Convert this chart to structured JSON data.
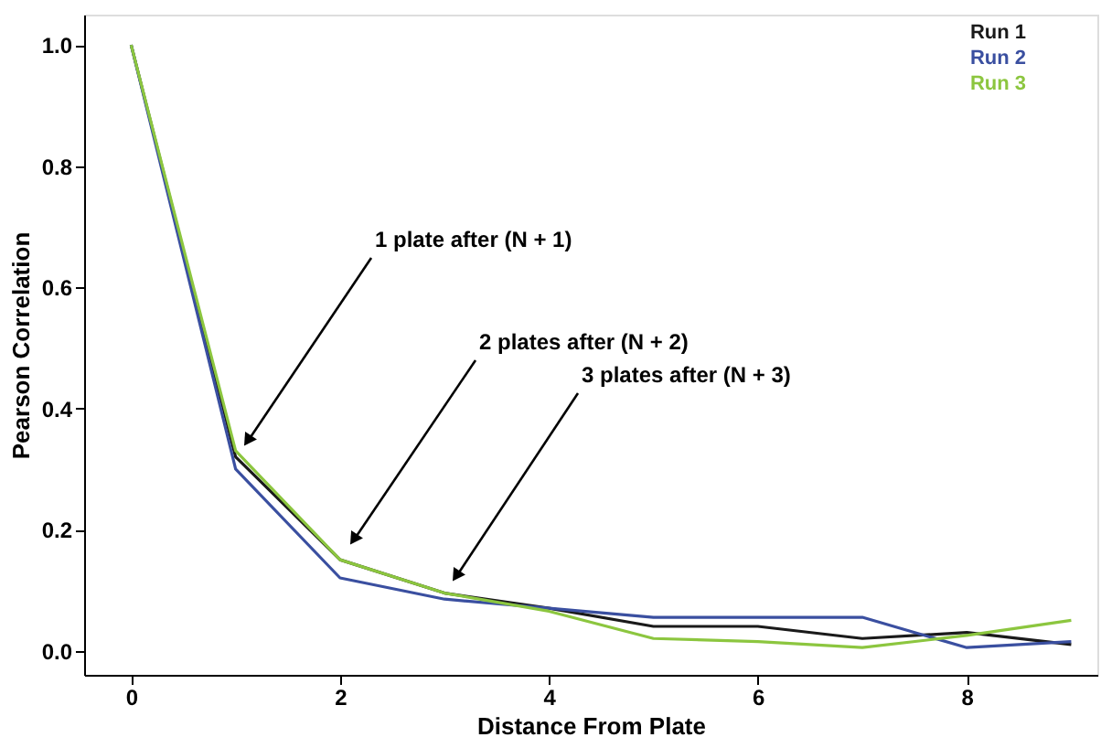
{
  "chart_data": {
    "type": "line",
    "xlabel": "Distance From Plate",
    "ylabel": "Pearson Correlation",
    "x": [
      0,
      1,
      2,
      3,
      4,
      5,
      6,
      7,
      8,
      9
    ],
    "series": [
      {
        "name": "Run 1",
        "color": "#1a1a1a",
        "values": [
          1.0,
          0.32,
          0.15,
          0.095,
          0.07,
          0.04,
          0.04,
          0.02,
          0.03,
          0.01
        ]
      },
      {
        "name": "Run 2",
        "color": "#3a4fa0",
        "values": [
          1.0,
          0.3,
          0.12,
          0.085,
          0.07,
          0.055,
          0.055,
          0.055,
          0.005,
          0.015
        ]
      },
      {
        "name": "Run 3",
        "color": "#8cc63f",
        "values": [
          1.0,
          0.33,
          0.15,
          0.095,
          0.065,
          0.02,
          0.015,
          0.005,
          0.025,
          0.05
        ]
      }
    ],
    "xlim": [
      -0.45,
      9.25
    ],
    "xticks": [
      0,
      2,
      4,
      6,
      8
    ],
    "ylim": [
      -0.04,
      1.05
    ],
    "yticks": [
      {
        "value": 0,
        "label": "0.0"
      },
      {
        "value": 0.2,
        "label": "0.2"
      },
      {
        "value": 0.4,
        "label": "0.4"
      },
      {
        "value": 0.6,
        "label": "0.6"
      },
      {
        "value": 0.8,
        "label": "0.8"
      },
      {
        "value": 1,
        "label": "1.0"
      }
    ],
    "annotations": [
      "1 plate after (N + 1)",
      "2 plates after (N + 2)",
      "3 plates after (N + 3)"
    ],
    "legend": "top right",
    "grid": false,
    "marker": "none",
    "line_style": "solid"
  }
}
